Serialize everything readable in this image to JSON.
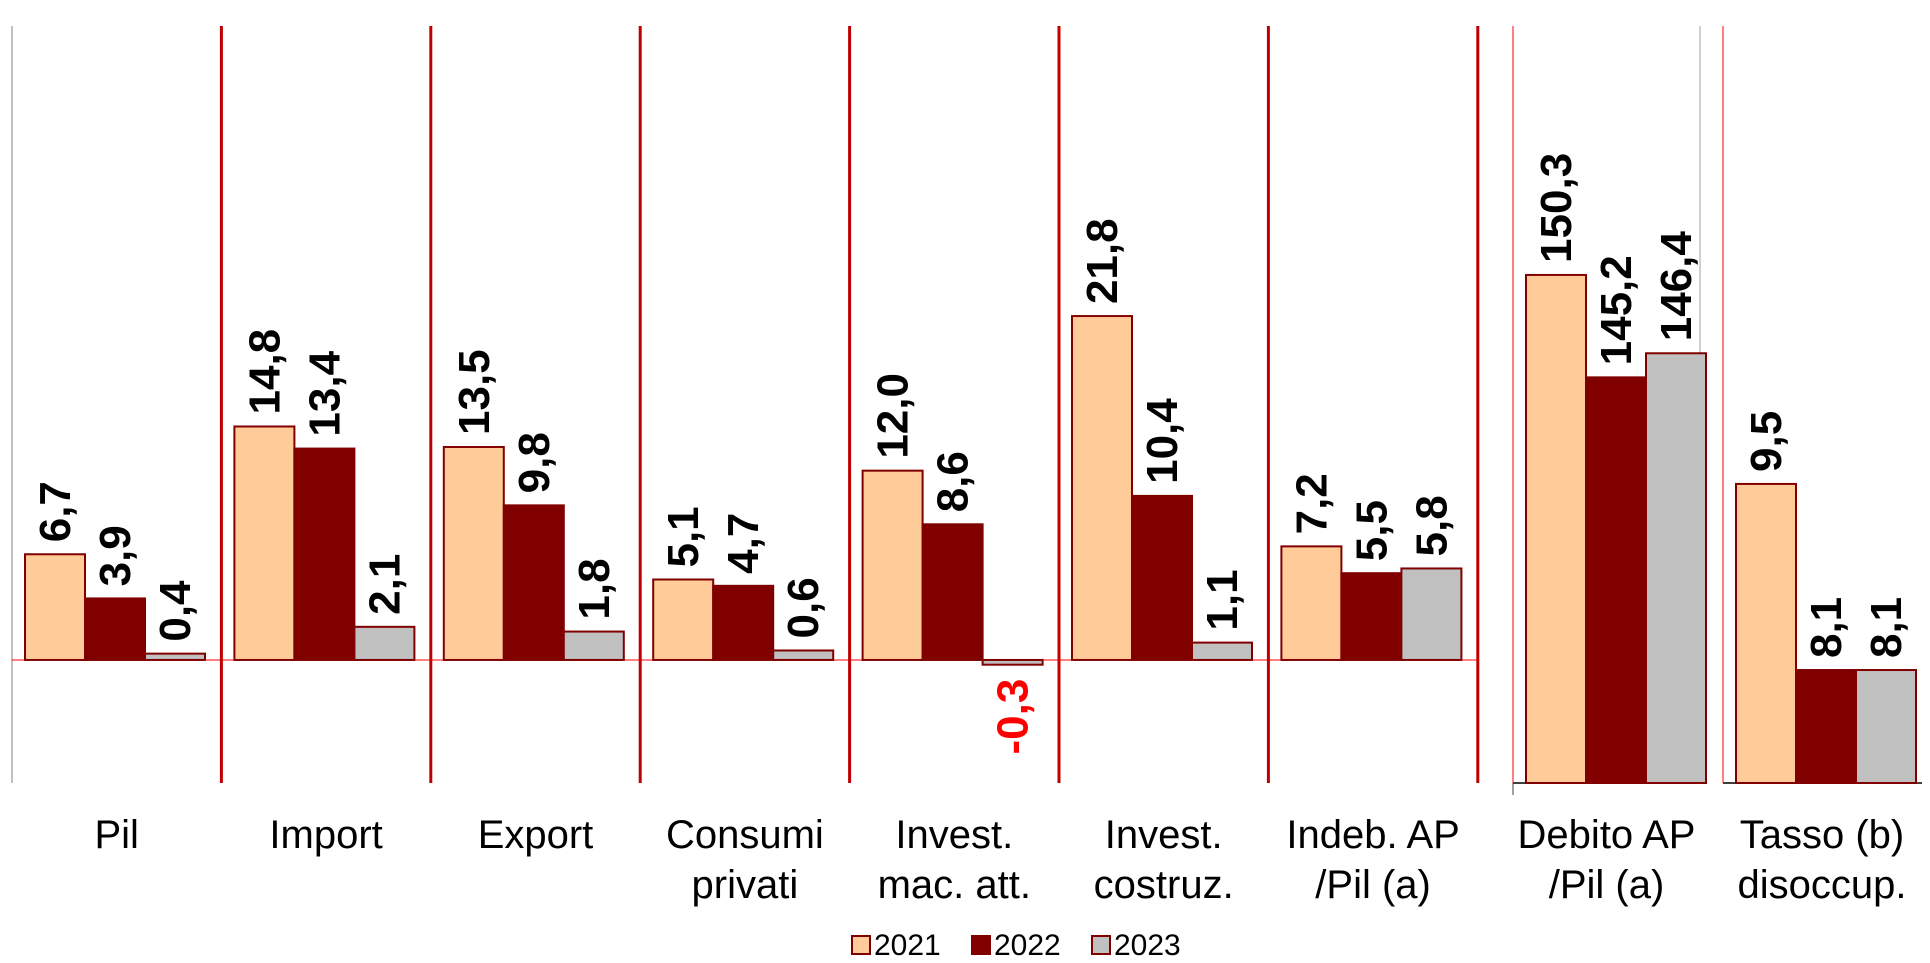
{
  "chart_data": {
    "type": "bar",
    "legend_position": "bottom",
    "grid": false,
    "colors": {
      "2021": "#FFCC99",
      "2022": "#800000",
      "2023": "#C0C0C0",
      "border": "#800000",
      "negative_label": "#FF0000",
      "separator": "#C00000"
    },
    "series": [
      {
        "name": "2021"
      },
      {
        "name": "2022"
      },
      {
        "name": "2023"
      }
    ],
    "panels": [
      {
        "ylim": [
          -7.8,
          39.3
        ],
        "groups": [
          {
            "label": [
              "Pil"
            ],
            "values": [
              6.7,
              3.9,
              0.4
            ],
            "labels": [
              "6,7",
              "3,9",
              "0,4"
            ]
          },
          {
            "label": [
              "Import"
            ],
            "values": [
              14.8,
              13.4,
              2.1
            ],
            "labels": [
              "14,8",
              "13,4",
              "2,1"
            ]
          },
          {
            "label": [
              "Export"
            ],
            "values": [
              13.5,
              9.8,
              1.8
            ],
            "labels": [
              "13,5",
              "9,8",
              "1,8"
            ]
          },
          {
            "label": [
              "Consumi",
              "privati"
            ],
            "values": [
              5.1,
              4.7,
              0.6
            ],
            "labels": [
              "5,1",
              "4,7",
              "0,6"
            ]
          },
          {
            "label": [
              "Invest.",
              "mac. att."
            ],
            "values": [
              12.0,
              8.6,
              -0.3
            ],
            "labels": [
              "12,0",
              "8,6",
              "-0,3"
            ]
          },
          {
            "label": [
              "Invest.",
              "costruz."
            ],
            "values": [
              21.8,
              10.4,
              1.1
            ],
            "labels": [
              "21,8",
              "10,4",
              "1,1"
            ]
          },
          {
            "label": [
              "Indeb. AP",
              "/Pil (a)"
            ],
            "values": [
              7.2,
              5.5,
              5.8
            ],
            "labels": [
              "7,2",
              "5,5",
              "5,8"
            ]
          }
        ]
      },
      {
        "ylim": [
          125,
          162
        ],
        "groups": [
          {
            "label": [
              "Debito AP",
              "/Pil (a)"
            ],
            "values": [
              150.3,
              145.2,
              146.4
            ],
            "labels": [
              "150,3",
              "145,2",
              "146,4"
            ]
          }
        ]
      },
      {
        "ylim": [
          7.25,
          12.84
        ],
        "groups": [
          {
            "label": [
              "Tasso (b)",
              "disoccup."
            ],
            "values": [
              9.5,
              8.1,
              8.1
            ],
            "labels": [
              "9,5",
              "8,1",
              "8,1"
            ]
          }
        ]
      }
    ]
  }
}
